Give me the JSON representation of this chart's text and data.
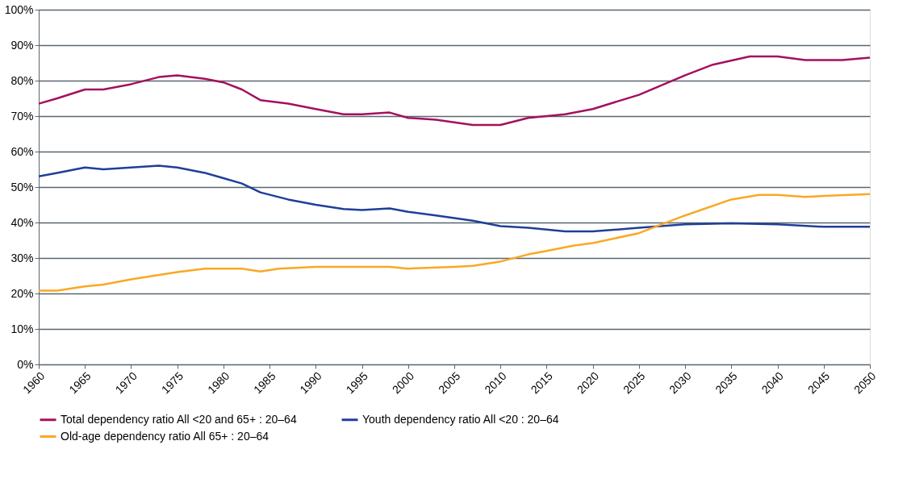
{
  "chart_data": {
    "type": "line",
    "series": [
      {
        "name": "Total dependency ratio   All <20 and 65+ : 20–64",
        "color": "#a3115e",
        "x": [
          1960,
          1962,
          1965,
          1967,
          1970,
          1973,
          1975,
          1978,
          1980,
          1982,
          1984,
          1987,
          1990,
          1993,
          1995,
          1998,
          2000,
          2003,
          2007,
          2010,
          2013,
          2017,
          2020,
          2025,
          2030,
          2033,
          2037,
          2040,
          2043,
          2047,
          2050
        ],
        "values": [
          73.5,
          75,
          77.5,
          77.5,
          79,
          81,
          81.5,
          80.5,
          79.5,
          77.5,
          74.5,
          73.5,
          72,
          70.5,
          70.5,
          71,
          69.5,
          69,
          67.5,
          67.5,
          69.5,
          70.5,
          72,
          76,
          81.5,
          84.5,
          86.8,
          86.8,
          85.8,
          85.8,
          86.5
        ]
      },
      {
        "name": "Youth dependency ratio   All <20 : 20–64",
        "color": "#1f3f99",
        "x": [
          1960,
          1962,
          1965,
          1967,
          1970,
          1973,
          1975,
          1978,
          1980,
          1982,
          1984,
          1987,
          1990,
          1993,
          1995,
          1998,
          2000,
          2003,
          2007,
          2010,
          2013,
          2015,
          2017,
          2020,
          2025,
          2030,
          2035,
          2040,
          2045,
          2050
        ],
        "values": [
          53,
          54,
          55.5,
          55,
          55.5,
          56,
          55.5,
          54,
          52.5,
          51,
          48.5,
          46.5,
          45,
          43.8,
          43.5,
          44,
          43,
          42,
          40.5,
          39,
          38.5,
          38,
          37.5,
          37.5,
          38.5,
          39.5,
          39.8,
          39.5,
          38.8,
          38.8
        ]
      },
      {
        "name": "Old-age dependency ratio   All 65+ : 20–64",
        "color": "#f9a825",
        "x": [
          1960,
          1962,
          1965,
          1967,
          1970,
          1975,
          1978,
          1980,
          1982,
          1984,
          1986,
          1990,
          1993,
          1995,
          1998,
          2000,
          2005,
          2007,
          2010,
          2013,
          2015,
          2018,
          2020,
          2025,
          2030,
          2035,
          2038,
          2040,
          2043,
          2045,
          2050
        ],
        "values": [
          20.8,
          20.8,
          22,
          22.5,
          24,
          26,
          27,
          27,
          27,
          26.2,
          27,
          27.5,
          27.5,
          27.5,
          27.5,
          27,
          27.5,
          27.8,
          29,
          31,
          32,
          33.5,
          34.2,
          37,
          42,
          46.5,
          47.8,
          47.8,
          47.2,
          47.5,
          48
        ]
      }
    ],
    "xlim": [
      1960,
      2050
    ],
    "xticks": [
      1960,
      1965,
      1970,
      1975,
      1980,
      1985,
      1990,
      1995,
      2000,
      2005,
      2010,
      2015,
      2020,
      2025,
      2030,
      2035,
      2040,
      2045,
      2050
    ],
    "ylim": [
      0,
      100
    ],
    "yticks": [
      {
        "value": 0,
        "label": "0%"
      },
      {
        "value": 10,
        "label": "10%"
      },
      {
        "value": 20,
        "label": "20%"
      },
      {
        "value": 30,
        "label": "30%"
      },
      {
        "value": 40,
        "label": "40%"
      },
      {
        "value": 50,
        "label": "50%"
      },
      {
        "value": 60,
        "label": "60%"
      },
      {
        "value": 70,
        "label": "70%"
      },
      {
        "value": 80,
        "label": "80%"
      },
      {
        "value": 90,
        "label": "90%"
      },
      {
        "value": 100,
        "label": "100%"
      }
    ],
    "grid": "y",
    "legend": "bottom",
    "line_style": "solid"
  }
}
